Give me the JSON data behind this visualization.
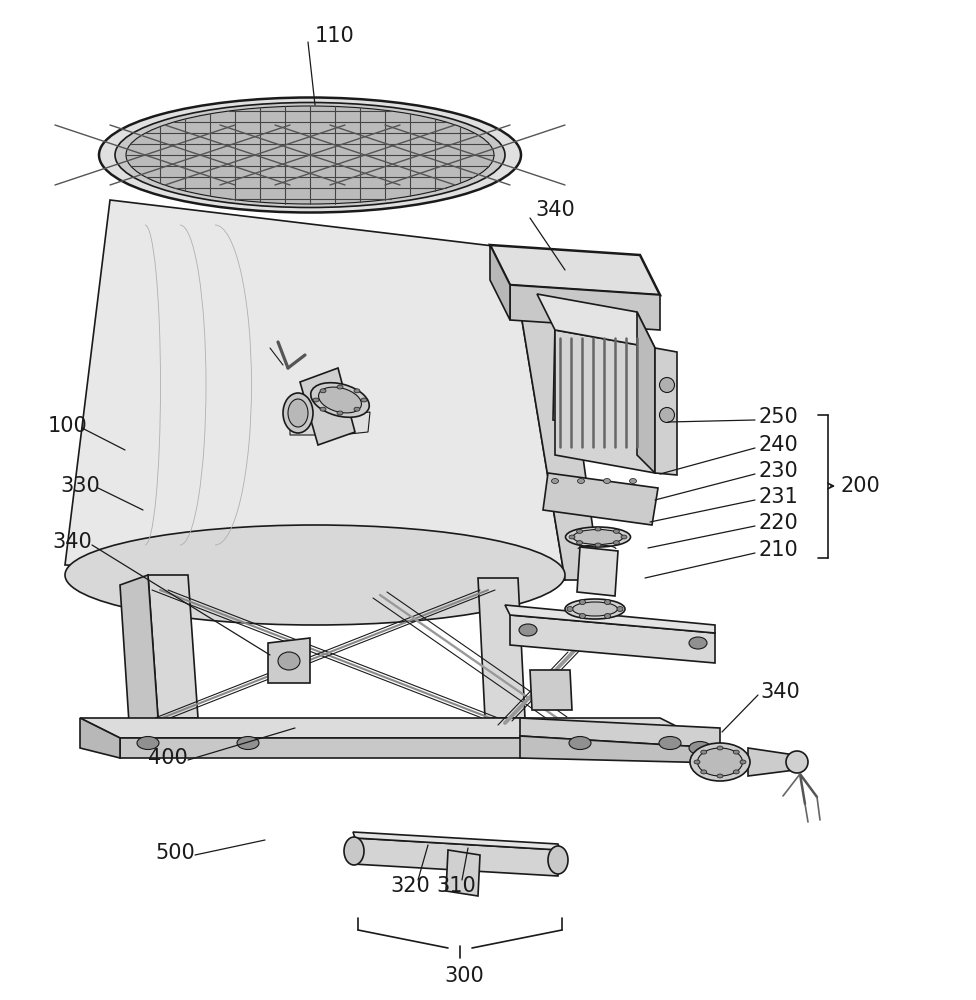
{
  "bg_color": "#ffffff",
  "line_color": "#1a1a1a",
  "figsize": [
    9.76,
    10.0
  ],
  "dpi": 100
}
